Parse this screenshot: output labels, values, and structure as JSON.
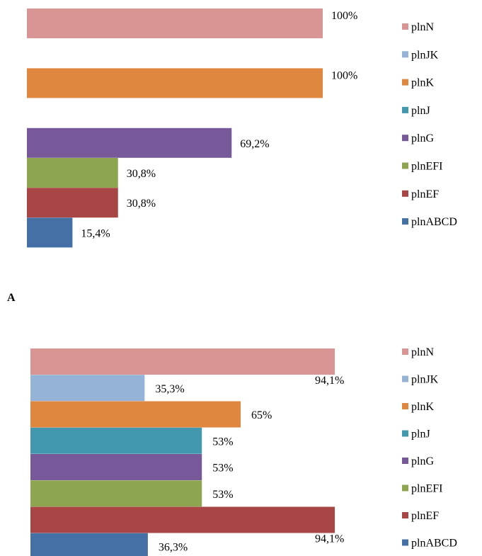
{
  "panel_label": "A",
  "chart_data": [
    {
      "type": "bar",
      "orientation": "horizontal",
      "xlim": [
        0,
        100
      ],
      "axis_unit": "%",
      "grid": false,
      "legend_position": "right",
      "categories": [
        "plnN",
        "plnJK",
        "plnK",
        "plnJ",
        "plnG",
        "plnEFI",
        "plnEF",
        "plnABCD"
      ],
      "values": [
        100,
        null,
        100,
        null,
        69.2,
        30.8,
        30.8,
        15.4
      ],
      "data_labels": [
        "100%",
        "",
        "100%",
        "",
        "69,2%",
        "30,8%",
        "30,8%",
        "15,4%"
      ],
      "colors": [
        "#d99594",
        "#95b3d7",
        "#e0873f",
        "#4198af",
        "#77599a",
        "#8ea54f",
        "#a84645",
        "#4470a6"
      ],
      "legend": [
        "plnN",
        "plnJK",
        "plnK",
        "plnJ",
        "plnG",
        "plnEFI",
        "plnEF",
        "plnABCD"
      ]
    },
    {
      "type": "bar",
      "orientation": "horizontal",
      "xlim": [
        0,
        100
      ],
      "axis_unit": "%",
      "grid": false,
      "legend_position": "right",
      "categories": [
        "plnN",
        "plnJK",
        "plnK",
        "plnJ",
        "plnG",
        "plnEFI",
        "plnEF",
        "plnABCD"
      ],
      "values": [
        94.1,
        35.3,
        65,
        53,
        53,
        53,
        94.1,
        36.3
      ],
      "data_labels": [
        "94,1%",
        "35,3%",
        "65%",
        "53%",
        "53%",
        "53%",
        "94,1%",
        "36,3%"
      ],
      "colors": [
        "#d99594",
        "#95b3d7",
        "#e0873f",
        "#4198af",
        "#77599a",
        "#8ea54f",
        "#a84645",
        "#4470a6"
      ],
      "legend": [
        "plnN",
        "plnJK",
        "plnK",
        "plnJ",
        "plnG",
        "plnEFI",
        "plnEF",
        "plnABCD"
      ]
    }
  ]
}
